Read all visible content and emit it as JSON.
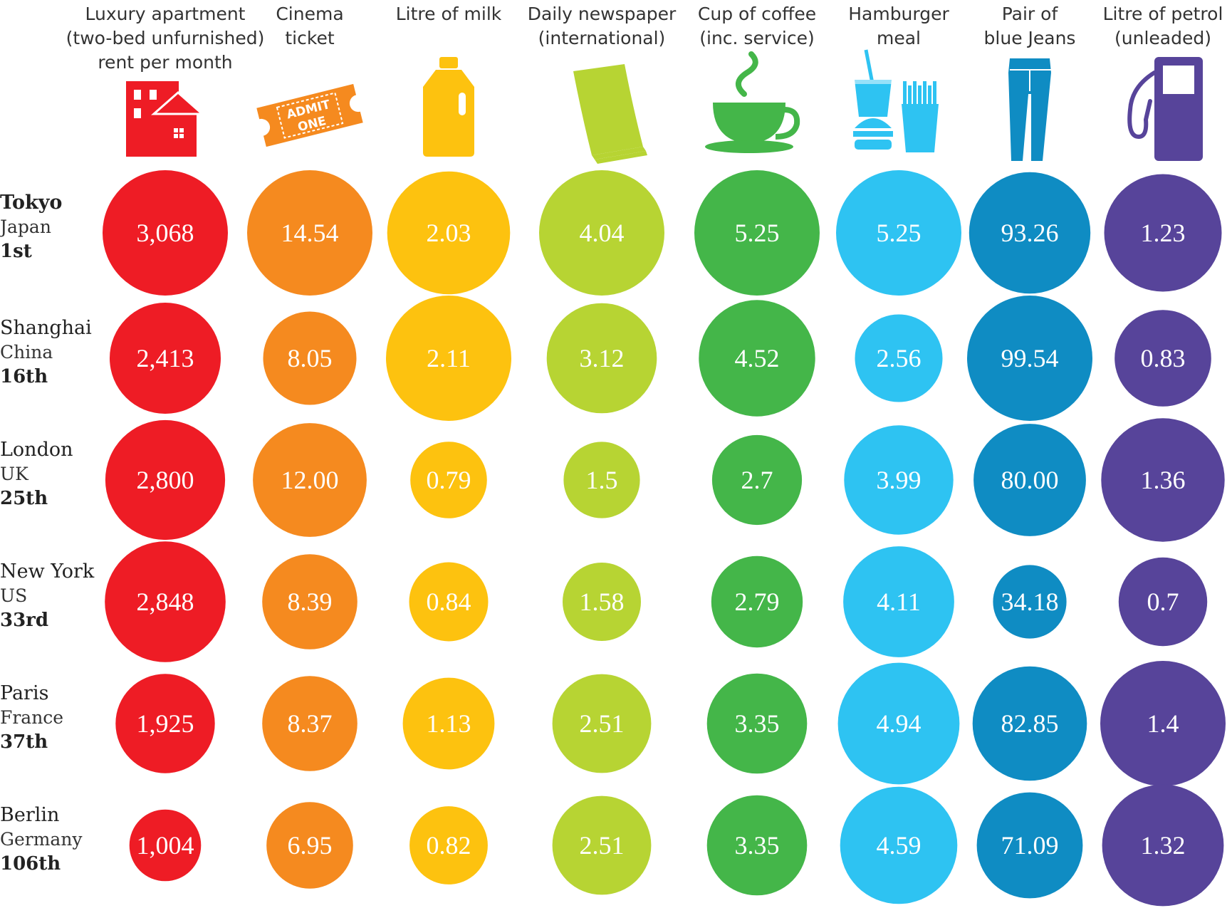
{
  "chart_data": {
    "type": "bubble-grid",
    "title": "",
    "categories": [
      {
        "label": [
          "Luxury apartment",
          "(two-bed unfurnished)",
          "rent per month"
        ],
        "icon": "apartment-building-icon",
        "color": "#ee1c25"
      },
      {
        "label": [
          "Cinema",
          "ticket"
        ],
        "icon": "admit-one-ticket-icon",
        "color": "#f58a1f",
        "icon_text": [
          "ADMIT",
          "ONE"
        ]
      },
      {
        "label": [
          "Litre of milk"
        ],
        "icon": "milk-jug-icon",
        "color": "#fdc20f"
      },
      {
        "label": [
          "Daily newspaper",
          "(international)"
        ],
        "icon": "newspaper-icon",
        "color": "#b7d433"
      },
      {
        "label": [
          "Cup of coffee",
          "(inc. service)"
        ],
        "icon": "coffee-cup-icon",
        "color": "#44b649"
      },
      {
        "label": [
          "Hamburger",
          "meal"
        ],
        "icon": "burger-meal-icon",
        "color": "#2ec3f2"
      },
      {
        "label": [
          "Pair of",
          "blue Jeans"
        ],
        "icon": "jeans-icon",
        "color": "#0f8cc3"
      },
      {
        "label": [
          "Litre of petrol",
          "(unleaded)"
        ],
        "icon": "petrol-pump-icon",
        "color": "#57449a"
      }
    ],
    "rows": [
      {
        "city": "Tokyo",
        "country": "Japan",
        "rank": "1st",
        "city_bold": true,
        "values": [
          "3,068",
          "14.54",
          "2.03",
          "4.04",
          "5.25",
          "5.25",
          "93.26",
          "1.23"
        ],
        "numeric": [
          3068,
          14.54,
          2.03,
          4.04,
          5.25,
          5.25,
          93.26,
          1.23
        ]
      },
      {
        "city": "Shanghai",
        "country": "China",
        "rank": "16th",
        "city_bold": false,
        "values": [
          "2,413",
          "8.05",
          "2.11",
          "3.12",
          "4.52",
          "2.56",
          "99.54",
          "0.83"
        ],
        "numeric": [
          2413,
          8.05,
          2.11,
          3.12,
          4.52,
          2.56,
          99.54,
          0.83
        ]
      },
      {
        "city": "London",
        "country": "UK",
        "rank": "25th",
        "city_bold": false,
        "values": [
          "2,800",
          "12.00",
          "0.79",
          "1.5",
          "2.7",
          "3.99",
          "80.00",
          "1.36"
        ],
        "numeric": [
          2800,
          12.0,
          0.79,
          1.5,
          2.7,
          3.99,
          80.0,
          1.36
        ]
      },
      {
        "city": "New York",
        "country": "US",
        "rank": "33rd",
        "city_bold": false,
        "values": [
          "2,848",
          "8.39",
          "0.84",
          "1.58",
          "2.79",
          "4.11",
          "34.18",
          "0.7"
        ],
        "numeric": [
          2848,
          8.39,
          0.84,
          1.58,
          2.79,
          4.11,
          34.18,
          0.7
        ]
      },
      {
        "city": "Paris",
        "country": "France",
        "rank": "37th",
        "city_bold": false,
        "values": [
          "1,925",
          "8.37",
          "1.13",
          "2.51",
          "3.35",
          "4.94",
          "82.85",
          "1.4"
        ],
        "numeric": [
          1925,
          8.37,
          1.13,
          2.51,
          3.35,
          4.94,
          82.85,
          1.4
        ]
      },
      {
        "city": "Berlin",
        "country": "Germany",
        "rank": "106th",
        "city_bold": false,
        "values": [
          "1,004",
          "6.95",
          "0.82",
          "2.51",
          "3.35",
          "4.59",
          "71.09",
          "1.32"
        ],
        "numeric": [
          1004,
          6.95,
          0.82,
          2.51,
          3.35,
          4.59,
          71.09,
          1.32
        ]
      }
    ]
  }
}
